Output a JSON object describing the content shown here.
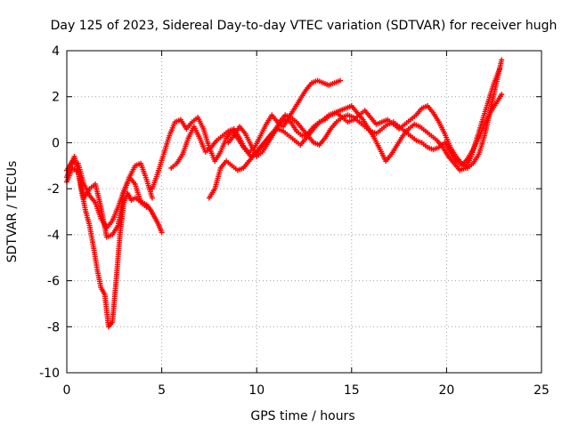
{
  "chart_data": {
    "type": "scatter",
    "title": "Day 125 of 2023, Sidereal Day-to-day VTEC variation (SDTVAR) for receiver hugh",
    "xlabel": "GPS time / hours",
    "ylabel": "SDTVAR / TECUs",
    "xlim": [
      0,
      25
    ],
    "ylim": [
      -10,
      4
    ],
    "xticks": [
      "0",
      "5",
      "10",
      "15",
      "20",
      "25"
    ],
    "yticks": [
      "4",
      "2",
      "0",
      "-2",
      "-4",
      "-6",
      "-8",
      "-10"
    ],
    "grid": true,
    "marker": "+",
    "color": "#ff0000",
    "series": [
      {
        "x": [
          0.0,
          0.2,
          0.4,
          0.6,
          0.8,
          1.0,
          1.2,
          1.4,
          1.6,
          1.8,
          2.0,
          2.2,
          2.4,
          2.6,
          2.8,
          3.0,
          3.2,
          3.4,
          3.6,
          3.8,
          4.0,
          4.2,
          4.4,
          4.6,
          4.8,
          5.0
        ],
        "y": [
          -1.5,
          -1.0,
          -0.6,
          -1.3,
          -2.2,
          -3.0,
          -3.6,
          -4.5,
          -5.5,
          -6.3,
          -6.6,
          -8.0,
          -7.8,
          -6.0,
          -4.0,
          -2.6,
          -2.2,
          -2.5,
          -2.4,
          -2.5,
          -2.6,
          -2.7,
          -2.9,
          -3.2,
          -3.5,
          -3.9
        ]
      },
      {
        "x": [
          0.0,
          0.3,
          0.6,
          0.9,
          1.2,
          1.5,
          1.8,
          2.1,
          2.4,
          2.7,
          3.0,
          3.3,
          3.6,
          3.9,
          4.2,
          4.5
        ],
        "y": [
          -1.2,
          -0.8,
          -0.9,
          -1.8,
          -2.3,
          -2.6,
          -3.3,
          -3.7,
          -3.4,
          -2.8,
          -2.1,
          -1.5,
          -1.0,
          -0.9,
          -1.6,
          -2.4
        ]
      },
      {
        "x": [
          0.0,
          0.3,
          0.6,
          0.9,
          1.2,
          1.5,
          1.8,
          2.1,
          2.4,
          2.7,
          3.0,
          3.3,
          3.6,
          3.9,
          4.2
        ],
        "y": [
          -1.7,
          -1.1,
          -1.3,
          -2.4,
          -2.0,
          -1.8,
          -2.8,
          -4.1,
          -4.0,
          -3.6,
          -2.2,
          -1.5,
          -1.8,
          -2.6,
          -2.8
        ]
      },
      {
        "x": [
          4.5,
          4.8,
          5.1,
          5.4,
          5.7,
          6.0,
          6.3,
          6.6,
          6.9,
          7.2,
          7.5,
          7.8,
          8.1,
          8.4,
          8.7,
          9.0,
          9.3,
          9.6,
          9.9,
          10.2,
          10.5,
          10.8,
          11.1,
          11.4,
          11.7,
          12.0,
          12.3,
          12.6,
          12.9,
          13.2,
          13.5,
          13.8,
          14.1,
          14.4
        ],
        "y": [
          -2.0,
          -1.3,
          -0.5,
          0.3,
          0.9,
          1.0,
          0.6,
          0.9,
          1.1,
          0.6,
          -0.2,
          -0.8,
          -0.4,
          0.2,
          0.5,
          0.2,
          -0.2,
          -0.4,
          -0.2,
          0.3,
          0.8,
          1.2,
          0.9,
          0.7,
          1.1,
          1.5,
          1.9,
          2.3,
          2.6,
          2.7,
          2.6,
          2.5,
          2.6,
          2.7
        ]
      },
      {
        "x": [
          5.5,
          5.8,
          6.1,
          6.4,
          6.7,
          7.0,
          7.3,
          7.6,
          7.9,
          8.2,
          8.5,
          8.8,
          9.1,
          9.4,
          9.7,
          10.0,
          10.3,
          10.6,
          10.9,
          11.2,
          11.5,
          11.8,
          12.1,
          12.4,
          12.7,
          13.0,
          13.3,
          13.6,
          13.9,
          14.2,
          14.5,
          14.8,
          15.1,
          15.4,
          15.7,
          16.0,
          16.3,
          16.6,
          16.9,
          17.2,
          17.5,
          17.8,
          18.1,
          18.4,
          18.7,
          19.0,
          19.3,
          19.6,
          19.9,
          20.2,
          20.5,
          20.8,
          21.1,
          21.4,
          21.7,
          22.0,
          22.3,
          22.6,
          22.9
        ],
        "y": [
          -1.1,
          -0.9,
          -0.5,
          0.2,
          0.7,
          0.2,
          -0.4,
          -0.2,
          0.1,
          0.3,
          0.5,
          0.6,
          0.2,
          -0.3,
          -0.6,
          -0.4,
          -0.1,
          0.2,
          0.5,
          0.8,
          1.0,
          0.9,
          0.5,
          0.3,
          0.4,
          0.7,
          0.9,
          1.0,
          1.2,
          1.3,
          1.1,
          0.9,
          1.0,
          1.2,
          1.4,
          1.1,
          0.8,
          0.9,
          1.0,
          0.8,
          0.6,
          0.8,
          1.0,
          1.2,
          1.5,
          1.6,
          1.3,
          0.9,
          0.4,
          -0.2,
          -0.6,
          -0.9,
          -1.1,
          -0.9,
          -0.5,
          0.3,
          1.4,
          2.5,
          3.6
        ]
      },
      {
        "x": [
          7.5,
          7.8,
          8.1,
          8.4,
          8.7,
          9.0,
          9.3,
          9.6,
          9.9,
          10.2,
          10.5,
          10.8,
          11.1,
          11.4,
          11.7,
          12.0,
          12.3,
          12.6,
          12.9,
          13.2,
          13.5,
          13.8,
          14.1,
          14.4,
          14.7,
          15.0,
          15.3,
          15.6,
          15.9,
          16.2,
          16.5,
          16.8,
          17.1,
          17.4,
          17.7,
          18.0,
          18.3,
          18.6,
          18.9,
          19.2,
          19.5,
          19.8,
          20.1,
          20.4,
          20.7,
          21.0,
          21.3,
          21.6,
          21.9,
          22.2,
          22.5,
          22.8
        ],
        "y": [
          -2.4,
          -2.0,
          -1.1,
          -0.8,
          -1.0,
          -1.2,
          -1.1,
          -0.8,
          -0.5,
          -0.2,
          0.1,
          0.4,
          0.6,
          0.5,
          0.3,
          0.1,
          -0.1,
          0.2,
          0.5,
          0.8,
          1.0,
          1.2,
          1.3,
          1.4,
          1.5,
          1.6,
          1.3,
          1.0,
          0.6,
          0.2,
          -0.3,
          -0.8,
          -0.5,
          -0.1,
          0.3,
          0.6,
          0.8,
          0.7,
          0.5,
          0.3,
          0.1,
          -0.2,
          -0.6,
          -0.9,
          -1.2,
          -1.1,
          -0.6,
          0.2,
          1.0,
          1.8,
          2.6,
          3.2
        ]
      },
      {
        "x": [
          8.5,
          8.8,
          9.1,
          9.4,
          9.7,
          10.0,
          10.3,
          10.6,
          10.9,
          11.2,
          11.5,
          11.8,
          12.1,
          12.4,
          12.7,
          13.0,
          13.3,
          13.6,
          13.9,
          14.2,
          14.5,
          14.8,
          15.1,
          15.4,
          15.7,
          16.0,
          16.3,
          16.6,
          16.9,
          17.2,
          17.5,
          17.8,
          18.1,
          18.4,
          18.7,
          19.0,
          19.3,
          19.6,
          19.9,
          20.2,
          20.5,
          20.8,
          21.1,
          21.4,
          21.7,
          22.0,
          22.3,
          22.6,
          22.9
        ],
        "y": [
          0.0,
          0.3,
          0.7,
          0.4,
          -0.1,
          -0.6,
          -0.4,
          0.0,
          0.4,
          0.9,
          1.2,
          1.1,
          0.9,
          0.6,
          0.3,
          0.0,
          -0.1,
          0.2,
          0.6,
          0.9,
          1.1,
          1.2,
          1.1,
          0.9,
          0.7,
          0.5,
          0.4,
          0.6,
          0.8,
          0.9,
          0.7,
          0.5,
          0.3,
          0.1,
          0.0,
          -0.2,
          -0.3,
          -0.2,
          0.0,
          -0.4,
          -0.8,
          -1.0,
          -0.7,
          -0.3,
          0.2,
          0.8,
          1.3,
          1.7,
          2.1
        ]
      }
    ]
  }
}
